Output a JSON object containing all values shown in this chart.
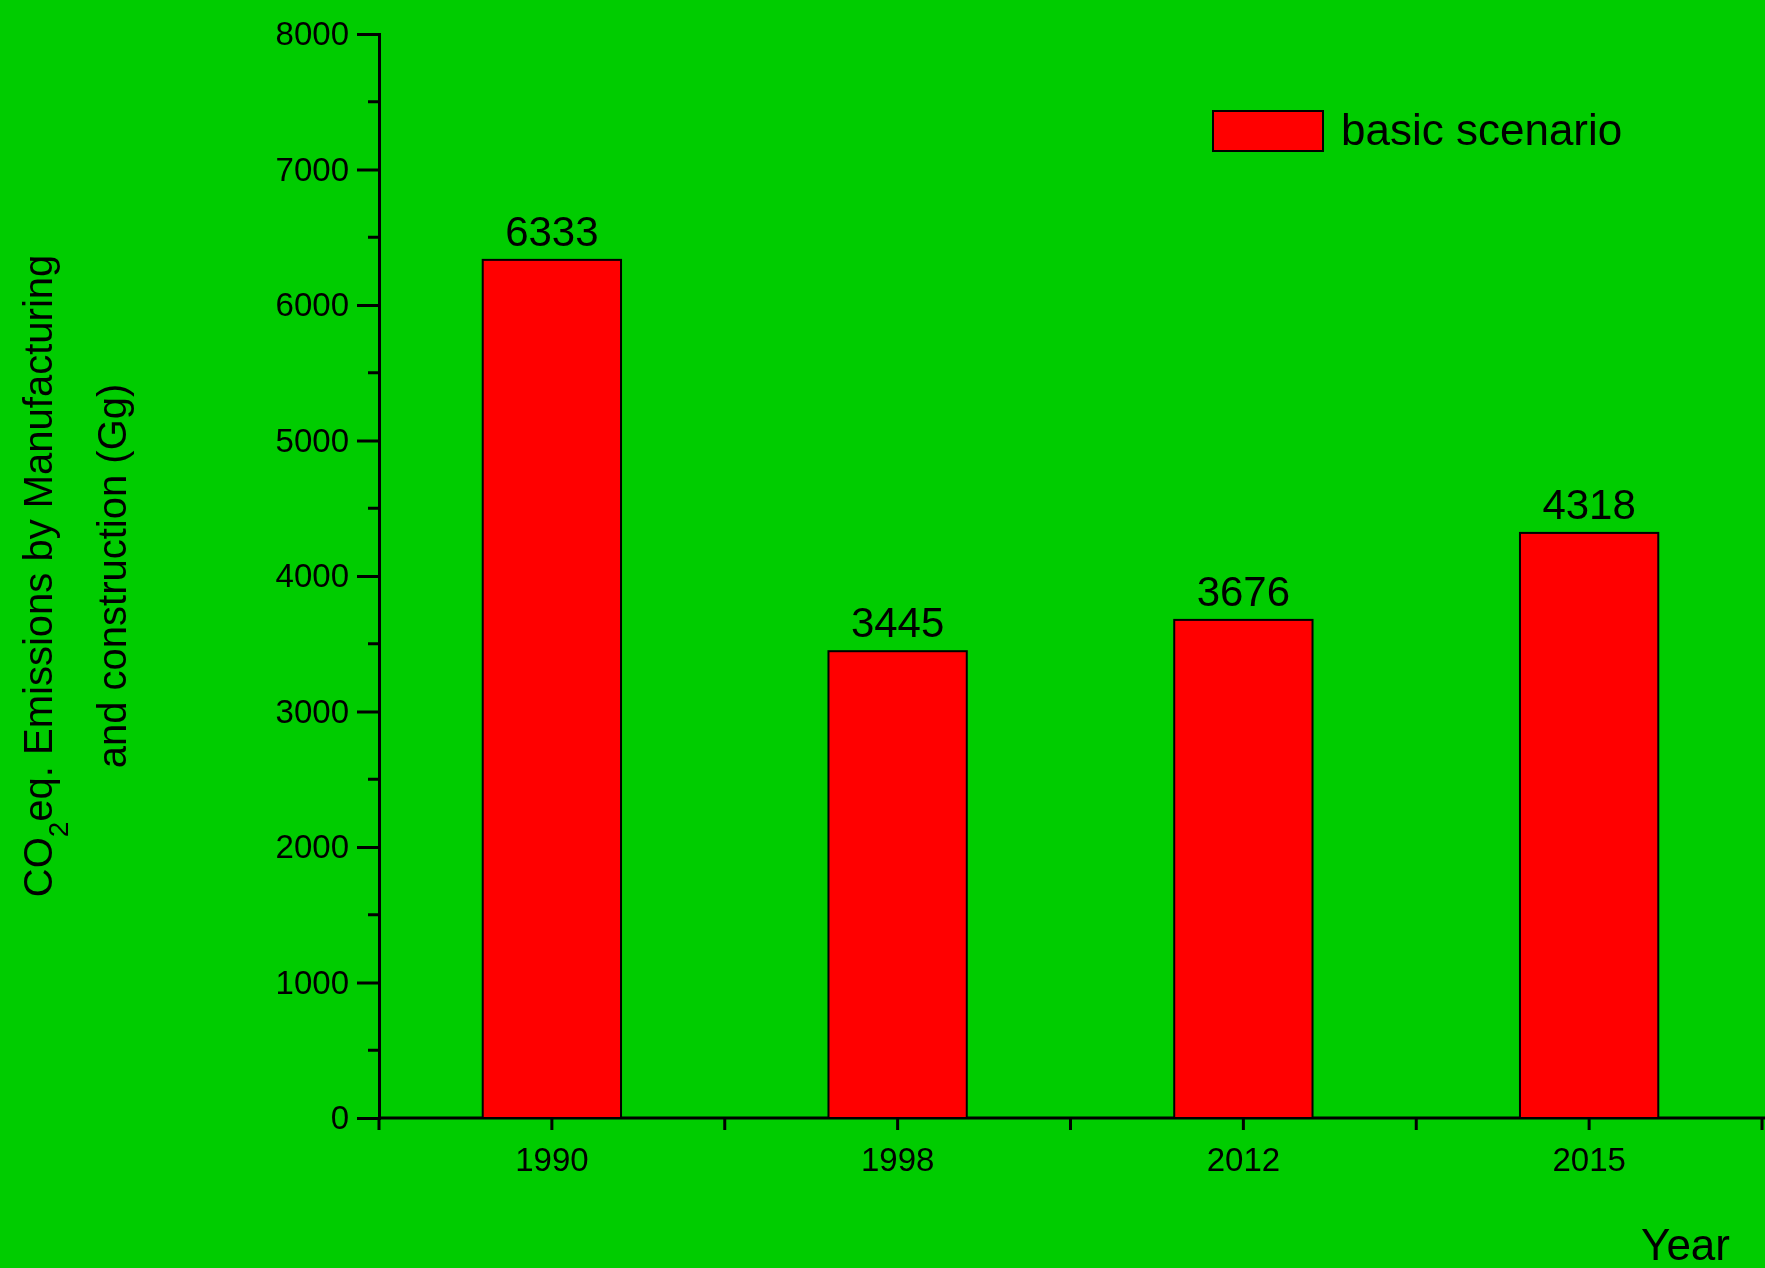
{
  "chart_data": {
    "type": "bar",
    "xlabel": "Year",
    "ylabel": "CO$_{2}$eq. Emissions by Manufacturing\nand construction (Gg)",
    "categories": [
      "1990",
      "1998",
      "2012",
      "2015"
    ],
    "series": [
      {
        "name": "basic scenario",
        "color": "#ff0000",
        "values": [
          6333,
          3445,
          3676,
          4318
        ]
      }
    ],
    "ylim": [
      0,
      8000
    ],
    "yticks": [
      0,
      1000,
      2000,
      3000,
      4000,
      5000,
      6000,
      7000,
      8000
    ],
    "data_labels": true,
    "legend": "top right",
    "grid": false
  }
}
